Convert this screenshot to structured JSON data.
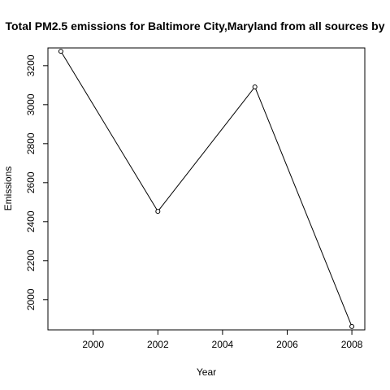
{
  "chart_data": {
    "type": "line",
    "title": "Total PM2.5 emissions for Baltimore City,Maryland from all sources by",
    "xlabel": "Year",
    "ylabel": "Emissions",
    "x": [
      1999,
      2002,
      2005,
      2008
    ],
    "series": [
      {
        "values": [
          3274,
          2453,
          3091,
          1862
        ]
      }
    ],
    "xlim": [
      1998.6,
      2008.4
    ],
    "ylim": [
      1845,
      3291
    ],
    "xticks": [
      2000,
      2002,
      2004,
      2006,
      2008
    ],
    "yticks": [
      2000,
      2200,
      2400,
      2600,
      2800,
      3000,
      3200
    ],
    "xtick_labels": [
      "2000",
      "2002",
      "2004",
      "2006",
      "2008"
    ],
    "ytick_labels": [
      "2000",
      "2200",
      "2400",
      "2600",
      "2800",
      "3000",
      "3200"
    ],
    "grid": false,
    "markers": "open-circle",
    "line_color": "#000000"
  }
}
